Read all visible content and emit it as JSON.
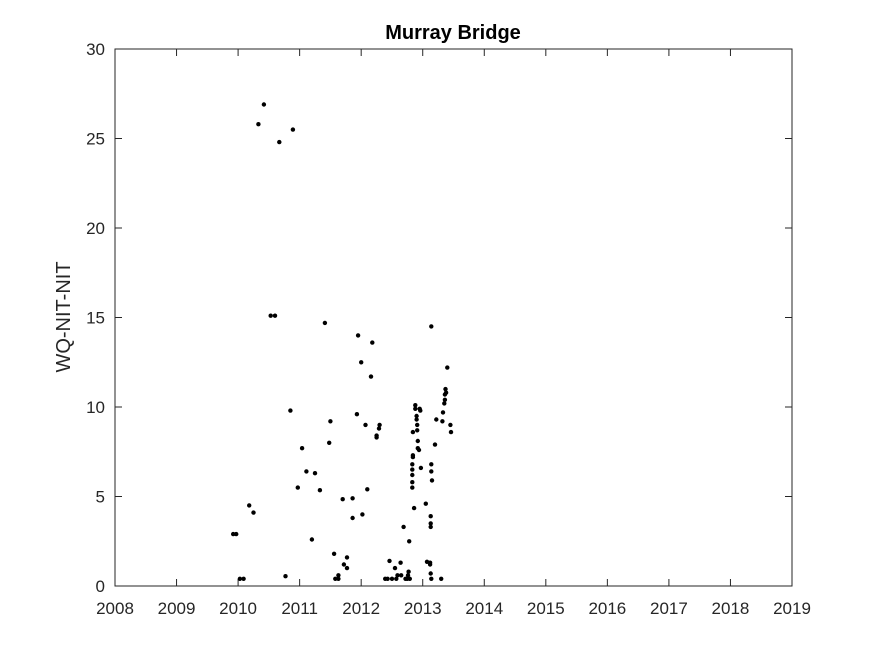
{
  "chart_data": {
    "type": "scatter",
    "title": "Murray Bridge",
    "xlabel": "",
    "ylabel": "WQ-NIT-NIT",
    "xlim": [
      2008,
      2019
    ],
    "ylim": [
      0,
      30
    ],
    "xticks": [
      "2008",
      "2009",
      "2010",
      "2011",
      "2012",
      "2013",
      "2014",
      "2015",
      "2016",
      "2017",
      "2018",
      "2019"
    ],
    "yticks": [
      "0",
      "5",
      "10",
      "15",
      "20",
      "25",
      "30"
    ],
    "grid": false,
    "legend": "none",
    "marker_color": "#000000",
    "series": [
      {
        "points": [
          [
            2009.92,
            2.9
          ],
          [
            2009.97,
            2.9
          ],
          [
            2010.03,
            0.4
          ],
          [
            2010.09,
            0.4
          ],
          [
            2010.18,
            4.5
          ],
          [
            2010.25,
            4.1
          ],
          [
            2010.33,
            25.8
          ],
          [
            2010.42,
            26.9
          ],
          [
            2010.53,
            15.1
          ],
          [
            2010.6,
            15.1
          ],
          [
            2010.67,
            24.8
          ],
          [
            2010.77,
            0.55
          ],
          [
            2010.85,
            9.8
          ],
          [
            2010.89,
            25.5
          ],
          [
            2010.97,
            5.5
          ],
          [
            2011.04,
            7.7
          ],
          [
            2011.11,
            6.4
          ],
          [
            2011.2,
            2.6
          ],
          [
            2011.25,
            6.3
          ],
          [
            2011.33,
            5.35
          ],
          [
            2011.41,
            14.7
          ],
          [
            2011.5,
            9.2
          ],
          [
            2011.48,
            8.0
          ],
          [
            2011.56,
            1.8
          ],
          [
            2011.58,
            0.4
          ],
          [
            2011.63,
            0.4
          ],
          [
            2011.63,
            0.6
          ],
          [
            2011.7,
            4.85
          ],
          [
            2011.72,
            1.2
          ],
          [
            2011.77,
            1.0
          ],
          [
            2011.77,
            1.6
          ],
          [
            2011.86,
            4.9
          ],
          [
            2011.86,
            3.8
          ],
          [
            2011.93,
            9.6
          ],
          [
            2011.95,
            14.0
          ],
          [
            2012.0,
            12.5
          ],
          [
            2012.02,
            4.0
          ],
          [
            2012.07,
            9.0
          ],
          [
            2012.1,
            5.4
          ],
          [
            2012.16,
            11.7
          ],
          [
            2012.18,
            13.6
          ],
          [
            2012.25,
            8.3
          ],
          [
            2012.25,
            8.4
          ],
          [
            2012.29,
            8.8
          ],
          [
            2012.3,
            9.0
          ],
          [
            2012.39,
            0.4
          ],
          [
            2012.43,
            0.4
          ],
          [
            2012.46,
            1.4
          ],
          [
            2012.5,
            0.4
          ],
          [
            2012.55,
            1.0
          ],
          [
            2012.57,
            0.4
          ],
          [
            2012.59,
            0.6
          ],
          [
            2012.64,
            1.3
          ],
          [
            2012.65,
            0.6
          ],
          [
            2012.69,
            3.3
          ],
          [
            2012.72,
            0.4
          ],
          [
            2012.75,
            0.4
          ],
          [
            2012.76,
            0.6
          ],
          [
            2012.77,
            0.8
          ],
          [
            2012.78,
            2.5
          ],
          [
            2012.79,
            0.4
          ],
          [
            2012.83,
            5.5
          ],
          [
            2012.83,
            5.8
          ],
          [
            2012.83,
            6.2
          ],
          [
            2012.83,
            6.5
          ],
          [
            2012.83,
            6.8
          ],
          [
            2012.84,
            7.2
          ],
          [
            2012.84,
            7.3
          ],
          [
            2012.84,
            8.6
          ],
          [
            2012.86,
            4.35
          ],
          [
            2012.88,
            10.1
          ],
          [
            2012.88,
            9.9
          ],
          [
            2012.9,
            9.5
          ],
          [
            2012.9,
            9.3
          ],
          [
            2012.91,
            9.0
          ],
          [
            2012.91,
            8.7
          ],
          [
            2012.92,
            8.1
          ],
          [
            2012.92,
            7.7
          ],
          [
            2012.94,
            7.6
          ],
          [
            2012.95,
            9.9
          ],
          [
            2012.96,
            9.8
          ],
          [
            2012.97,
            6.6
          ],
          [
            2013.05,
            4.6
          ],
          [
            2013.07,
            1.35
          ],
          [
            2013.12,
            1.3
          ],
          [
            2013.12,
            1.2
          ],
          [
            2013.13,
            0.7
          ],
          [
            2013.14,
            0.4
          ],
          [
            2013.14,
            14.5
          ],
          [
            2013.13,
            3.9
          ],
          [
            2013.13,
            3.5
          ],
          [
            2013.13,
            3.3
          ],
          [
            2013.14,
            6.8
          ],
          [
            2013.14,
            6.4
          ],
          [
            2013.15,
            5.9
          ],
          [
            2013.2,
            7.9
          ],
          [
            2013.22,
            9.3
          ],
          [
            2013.3,
            0.4
          ],
          [
            2013.32,
            9.2
          ],
          [
            2013.33,
            9.7
          ],
          [
            2013.35,
            10.2
          ],
          [
            2013.36,
            10.4
          ],
          [
            2013.36,
            10.7
          ],
          [
            2013.37,
            11.0
          ],
          [
            2013.38,
            10.8
          ],
          [
            2013.4,
            12.2
          ],
          [
            2013.45,
            9.0
          ],
          [
            2013.46,
            8.6
          ]
        ]
      }
    ]
  }
}
